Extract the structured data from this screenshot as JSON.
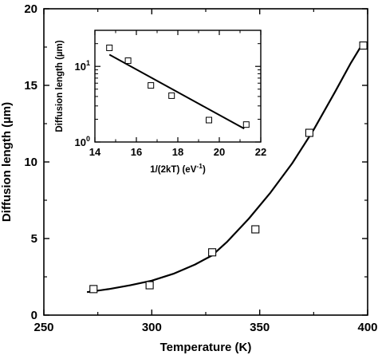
{
  "chart_data": [
    {
      "id": "main",
      "type": "scatter",
      "xlabel": "Temperature (K)",
      "ylabel": "Diffusion length (µm)",
      "xlim": [
        250,
        400
      ],
      "ylim": [
        0,
        20
      ],
      "xticks": [
        250,
        300,
        350,
        400
      ],
      "yticks": [
        0,
        5,
        10,
        15,
        20
      ],
      "xticks_minor": [
        275,
        325,
        375
      ],
      "yticks_minor": [
        2.5,
        7.5,
        12.5,
        17.5
      ],
      "series": [
        {
          "kind": "markers",
          "marker": "open-square",
          "x": [
            273,
            299,
            328,
            348,
            373,
            398
          ],
          "y": [
            1.7,
            1.95,
            4.1,
            5.6,
            11.9,
            17.6
          ]
        },
        {
          "kind": "line",
          "x": [
            270,
            280,
            290,
            300,
            310,
            320,
            328,
            335,
            345,
            355,
            365,
            375,
            385,
            392,
            398
          ],
          "y": [
            1.5,
            1.7,
            1.95,
            2.25,
            2.7,
            3.3,
            3.9,
            4.8,
            6.3,
            8.0,
            9.9,
            12.1,
            14.6,
            16.4,
            17.8
          ]
        }
      ],
      "grid": false,
      "legend": "none"
    },
    {
      "id": "inset",
      "type": "scatter",
      "xlabel_parts": [
        "1/(2kT) (eV",
        "-1",
        ")"
      ],
      "ylabel": "Diffusion length (µm)",
      "xlim": [
        14,
        22
      ],
      "ylim": [
        1,
        30
      ],
      "yscale": "log",
      "xticks": [
        14,
        16,
        18,
        20,
        22
      ],
      "xticks_minor": [
        15,
        17,
        19,
        21
      ],
      "yticks_major": [
        1,
        10
      ],
      "yticks_minor": [
        2,
        3,
        4,
        5,
        6,
        7,
        8,
        9,
        20,
        30
      ],
      "ytick_labels": [
        {
          "base": "10",
          "exp": "0",
          "value": 1
        },
        {
          "base": "10",
          "exp": "1",
          "value": 10
        }
      ],
      "series": [
        {
          "kind": "markers",
          "marker": "open-square",
          "x": [
            14.7,
            15.6,
            16.7,
            17.7,
            19.5,
            21.3
          ],
          "y": [
            17.6,
            11.9,
            5.6,
            4.1,
            1.95,
            1.7
          ]
        },
        {
          "kind": "line",
          "x": [
            14.7,
            21.2
          ],
          "y": [
            14.3,
            1.5
          ]
        }
      ],
      "grid": false,
      "legend": "none"
    }
  ]
}
